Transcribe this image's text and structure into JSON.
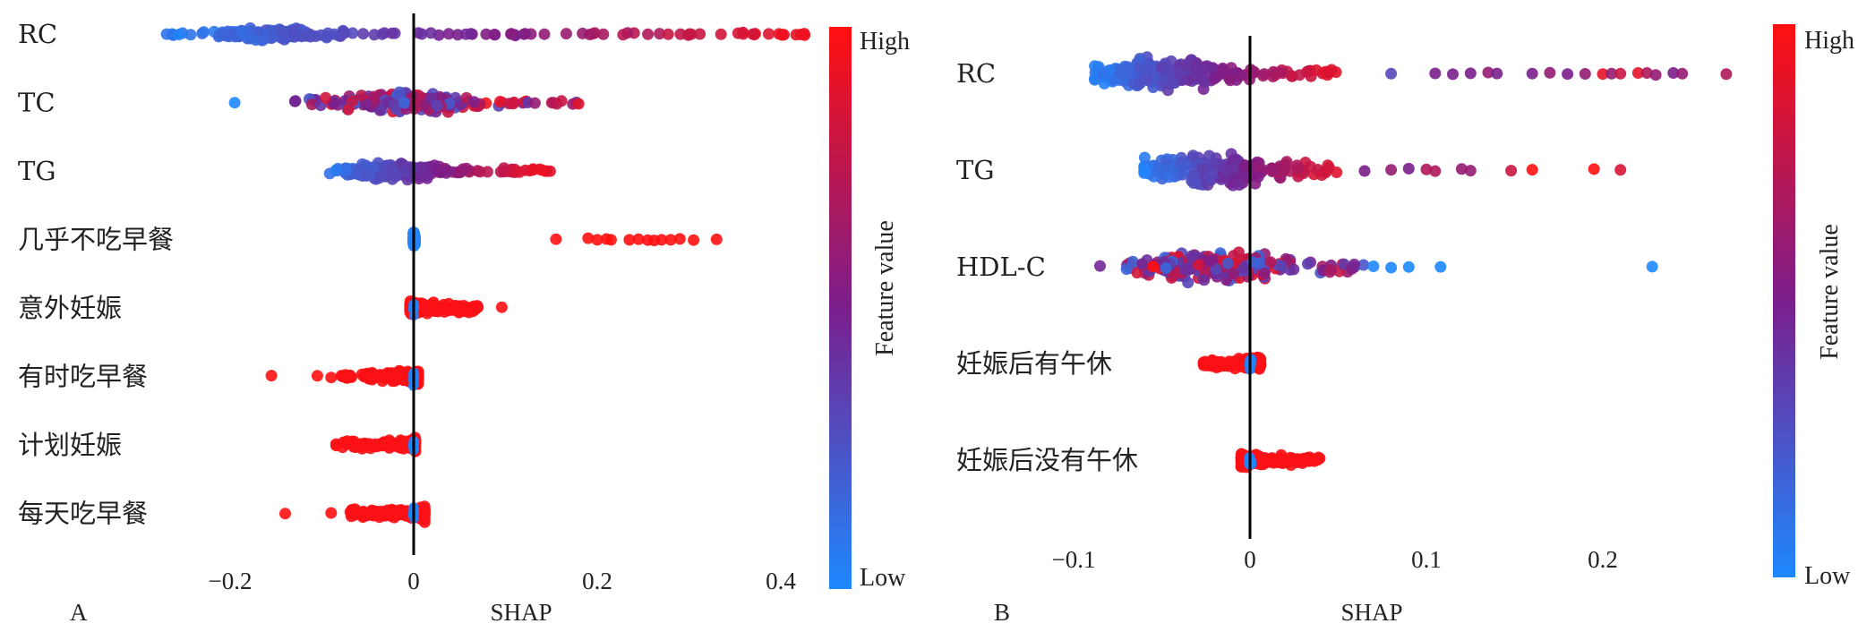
{
  "chart_data": [
    {
      "type": "scatter",
      "subtype": "shap-beeswarm",
      "panel_label": "A",
      "xlabel": "SHAP",
      "xlim": [
        -0.27,
        0.44
      ],
      "xticks": [
        -0.2,
        0,
        0.2,
        0.4
      ],
      "xtick_labels": [
        "−0.2",
        "0",
        "0.2",
        "0.4"
      ],
      "zero_line": true,
      "colorbar": {
        "high": "High",
        "low": "Low",
        "title": "Feature value"
      },
      "features": [
        {
          "name": "RC",
          "range": [
            -0.27,
            0.43
          ],
          "dense_center": -0.15,
          "dense_width": 0.09,
          "color_mode": "gradient",
          "n": 230,
          "spread": 0.55
        },
        {
          "name": "TC",
          "range": [
            -0.13,
            0.18
          ],
          "extra": [
            [
              -0.195,
              "low"
            ]
          ],
          "dense_center": -0.01,
          "dense_width": 0.09,
          "color_mode": "mixed",
          "n": 230,
          "spread": 1.0
        },
        {
          "name": "TG",
          "range": [
            -0.1,
            0.15
          ],
          "dense_center": -0.02,
          "dense_width": 0.08,
          "color_mode": "gradient",
          "n": 200,
          "spread": 0.85
        },
        {
          "name": "几乎不吃早餐",
          "cluster": [
            -0.0005,
            0.0015
          ],
          "cluster_color": "low",
          "red_points": [
            0.155,
            0.19,
            0.2,
            0.21,
            0.215,
            0.235,
            0.245,
            0.255,
            0.262,
            0.27,
            0.28,
            0.29,
            0.305,
            0.33
          ],
          "n": 60
        },
        {
          "name": "意外妊娠",
          "cluster": [
            -0.004,
            0.07
          ],
          "cluster_color": "high",
          "red_points": [
            0.096
          ],
          "n": 150
        },
        {
          "name": "有时吃早餐",
          "cluster": [
            -0.08,
            0.005
          ],
          "cluster_color": "high",
          "red_points": [
            -0.155,
            -0.105,
            -0.09
          ],
          "n": 150
        },
        {
          "name": "计划妊娠",
          "cluster": [
            -0.085,
            0.002
          ],
          "cluster_color": "high",
          "red_points": [],
          "n": 110
        },
        {
          "name": "每天吃早餐",
          "cluster": [
            -0.07,
            0.012
          ],
          "cluster_color": "high",
          "red_points": [
            -0.14,
            -0.09
          ],
          "n": 140
        }
      ]
    },
    {
      "type": "scatter",
      "subtype": "shap-beeswarm",
      "panel_label": "B",
      "xlabel": "SHAP",
      "xlim": [
        -0.115,
        0.285
      ],
      "xticks": [
        -0.1,
        0,
        0.1,
        0.2
      ],
      "xtick_labels": [
        "−0.1",
        "0",
        "0.1",
        "0.2"
      ],
      "zero_line": true,
      "colorbar": {
        "high": "High",
        "low": "Low",
        "title": "Feature value"
      },
      "features": [
        {
          "name": "RC",
          "range": [
            -0.088,
            0.055
          ],
          "dense_center": -0.05,
          "dense_width": 0.05,
          "color_mode": "gradient",
          "n": 230,
          "spread": 1.0,
          "tail": [
            [
              0.08,
              0.3
            ],
            [
              0.105,
              0.5
            ],
            [
              0.115,
              0.5
            ],
            [
              0.125,
              0.5
            ],
            [
              0.135,
              0.6
            ],
            [
              0.14,
              0.5
            ],
            [
              0.16,
              0.5
            ],
            [
              0.17,
              0.6
            ],
            [
              0.18,
              0.5
            ],
            [
              0.19,
              0.6
            ],
            [
              0.2,
              0.9
            ],
            [
              0.205,
              0.6
            ],
            [
              0.21,
              0.8
            ],
            [
              0.22,
              0.9
            ],
            [
              0.225,
              0.7
            ],
            [
              0.23,
              0.6
            ],
            [
              0.24,
              0.5
            ],
            [
              0.245,
              0.6
            ],
            [
              0.27,
              0.7
            ]
          ]
        },
        {
          "name": "TG",
          "range": [
            -0.06,
            0.055
          ],
          "dense_center": -0.02,
          "dense_width": 0.06,
          "color_mode": "gradient",
          "n": 220,
          "spread": 1.0,
          "tail": [
            [
              0.065,
              0.5
            ],
            [
              0.08,
              0.6
            ],
            [
              0.09,
              0.5
            ],
            [
              0.1,
              0.7
            ],
            [
              0.105,
              0.7
            ],
            [
              0.12,
              0.6
            ],
            [
              0.125,
              0.6
            ],
            [
              0.148,
              0.8
            ],
            [
              0.16,
              1.0
            ],
            [
              0.195,
              1.0
            ],
            [
              0.21,
              0.85
            ]
          ]
        },
        {
          "name": "HDL-C",
          "range": [
            -0.07,
            0.065
          ],
          "extra": [
            [
              -0.085,
              "mid"
            ],
            [
              -0.055,
              "high"
            ]
          ],
          "dense_center": -0.02,
          "dense_width": 0.06,
          "color_mode": "mixed",
          "n": 220,
          "spread": 1.0,
          "tail": [
            [
              0.07,
              0.0
            ],
            [
              0.08,
              0.0
            ],
            [
              0.09,
              0.0
            ],
            [
              0.108,
              0.0
            ],
            [
              0.228,
              0.0
            ]
          ]
        },
        {
          "name": "妊娠后有午休",
          "cluster": [
            -0.028,
            0.006
          ],
          "cluster_color": "high",
          "red_points": [],
          "n": 130
        },
        {
          "name": "妊娠后没有午休",
          "cluster": [
            -0.005,
            0.042
          ],
          "cluster_color": "high",
          "red_points": [],
          "n": 140
        }
      ]
    }
  ]
}
